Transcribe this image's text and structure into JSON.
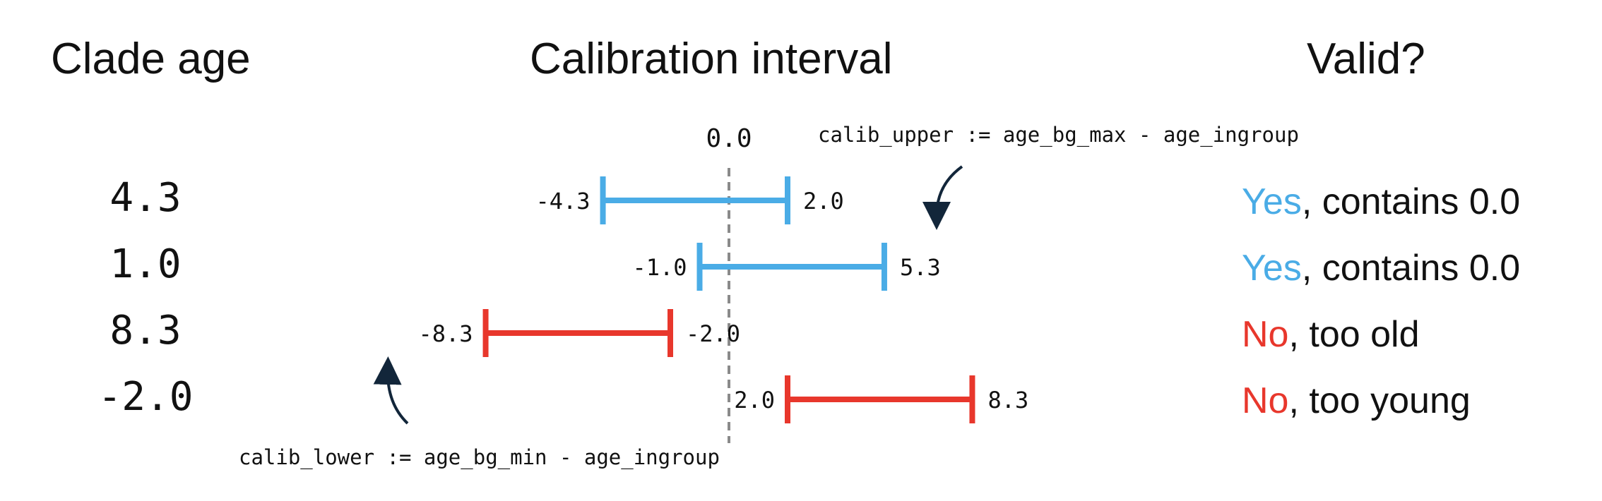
{
  "headings": {
    "clade_age": "Clade age",
    "calibration_interval": "Calibration interval",
    "valid": "Valid?"
  },
  "zero_label": "0.0",
  "formulas": {
    "upper": "calib_upper := age_bg_max - age_ingroup",
    "lower": "calib_lower := age_bg_min - age_ingroup"
  },
  "colors": {
    "valid": "#4aace6",
    "invalid": "#e8372c",
    "zero_line": "#8a8a8a",
    "arrow": "#12263a"
  },
  "rows": [
    {
      "age": "4.3",
      "lower": -4.3,
      "upper": 2.0,
      "lower_label": "-4.3",
      "upper_label": "2.0",
      "verdict": "Yes",
      "reason": ", contains 0.0",
      "status": "valid"
    },
    {
      "age": "1.0",
      "lower": -1.0,
      "upper": 5.3,
      "lower_label": "-1.0",
      "upper_label": "5.3",
      "verdict": "Yes",
      "reason": ", contains 0.0",
      "status": "valid"
    },
    {
      "age": "8.3",
      "lower": -8.3,
      "upper": -2.0,
      "lower_label": "-8.3",
      "upper_label": "-2.0",
      "verdict": "No",
      "reason": ", too old",
      "status": "invalid"
    },
    {
      "age": "-2.0",
      "lower": 2.0,
      "upper": 8.3,
      "lower_label": "2.0",
      "upper_label": "8.3",
      "verdict": "No",
      "reason": ", too young",
      "status": "invalid"
    }
  ]
}
